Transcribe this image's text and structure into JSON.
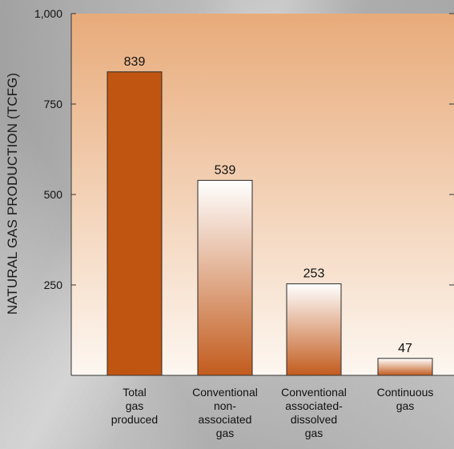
{
  "chart_data": {
    "type": "bar",
    "title": "",
    "xlabel": "",
    "ylabel": "NATURAL GAS PRODUCTION (TCFG)",
    "categories": [
      [
        "Total",
        "gas",
        "produced"
      ],
      [
        "Conventional",
        "non-",
        "associated",
        "gas"
      ],
      [
        "Conventional",
        "associated-",
        "dissolved",
        "gas"
      ],
      [
        "Continuous",
        "gas"
      ]
    ],
    "values": [
      839,
      539,
      253,
      47
    ],
    "data_labels": [
      "839",
      "539",
      "253",
      "47"
    ],
    "ylim": [
      0,
      1000
    ],
    "yticks": [
      250,
      500,
      750,
      1000
    ],
    "ytick_labels": [
      "250",
      "500",
      "750",
      "1,000"
    ],
    "grid": false,
    "legend": "none"
  },
  "colors": {
    "plot_bg_top": "#e8ab7a",
    "plot_bg_bottom": "#fdf7f1",
    "bar_solid": "#c05512",
    "bar_gradient_top": "#ffffff",
    "bar_gradient_bottom": "#c25b1d",
    "axis": "#333333",
    "text": "#111111"
  }
}
